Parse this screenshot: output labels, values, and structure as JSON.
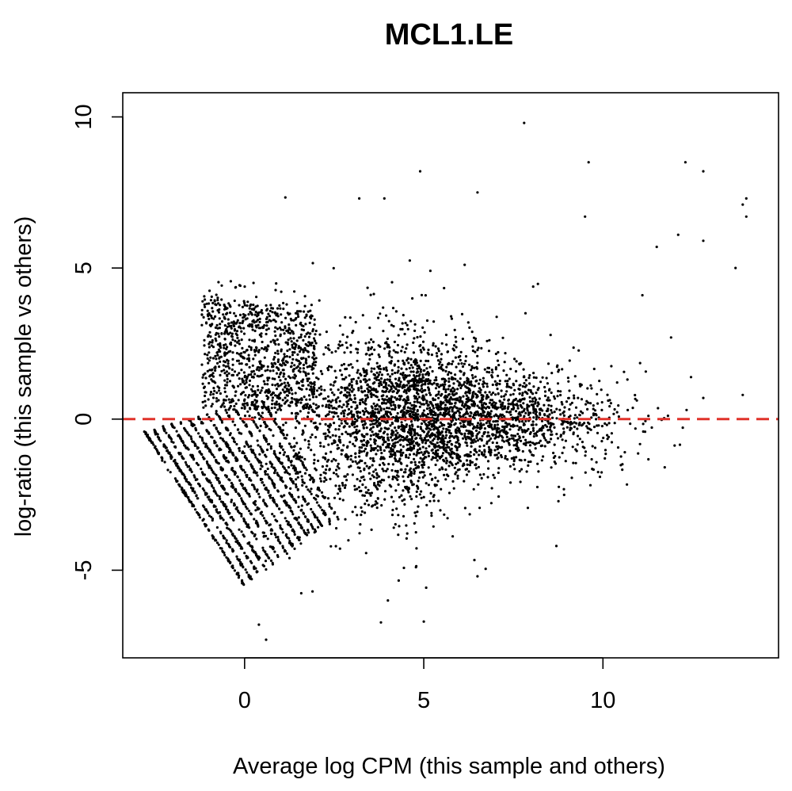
{
  "chart_data": {
    "type": "scatter",
    "title": "MCL1.LE",
    "xlabel": "Average log CPM (this sample and others)",
    "ylabel": "log-ratio (this sample vs others)",
    "xlim": [
      -3.4,
      14.9
    ],
    "ylim": [
      -7.9,
      10.8
    ],
    "xticks": [
      0,
      5,
      10
    ],
    "yticks": [
      -5,
      0,
      5,
      10
    ],
    "xtick_labels": [
      "0",
      "5",
      "10"
    ],
    "ytick_labels": [
      "-5",
      "0",
      "5",
      "10"
    ],
    "grid": false,
    "legend": "none",
    "reference_line": {
      "y": 0,
      "style": "dashed",
      "color": "#e0322a"
    },
    "point_color": "#000000",
    "points_note": "approximately 15000 genes; dense cloud centred near x=5, y=0; diagonal bands of low-count genes at lower left",
    "outliers": [
      {
        "x": 7.8,
        "y": 9.8
      },
      {
        "x": 4.9,
        "y": 8.2
      },
      {
        "x": 9.6,
        "y": 8.5
      },
      {
        "x": 12.3,
        "y": 8.5
      },
      {
        "x": 12.8,
        "y": 8.2
      },
      {
        "x": 6.5,
        "y": 7.5
      },
      {
        "x": 3.2,
        "y": 7.3
      },
      {
        "x": 3.9,
        "y": 7.3
      },
      {
        "x": 14.0,
        "y": 7.3
      },
      {
        "x": 13.9,
        "y": 7.1
      },
      {
        "x": 14.0,
        "y": 6.7
      },
      {
        "x": 9.5,
        "y": 6.7
      },
      {
        "x": 12.1,
        "y": 6.1
      },
      {
        "x": 11.5,
        "y": 5.7
      },
      {
        "x": 12.8,
        "y": 5.9
      },
      {
        "x": 13.7,
        "y": 5.0
      },
      {
        "x": 11.1,
        "y": 4.1
      },
      {
        "x": 11.9,
        "y": 2.7
      },
      {
        "x": 13.9,
        "y": 0.8
      },
      {
        "x": 12.8,
        "y": 0.7
      },
      {
        "x": 5.0,
        "y": -6.7
      },
      {
        "x": 4.0,
        "y": -6.0
      },
      {
        "x": 0.6,
        "y": -7.3
      },
      {
        "x": 0.4,
        "y": -6.8
      },
      {
        "x": 8.7,
        "y": -4.2
      },
      {
        "x": 6.5,
        "y": -5.2
      }
    ]
  }
}
